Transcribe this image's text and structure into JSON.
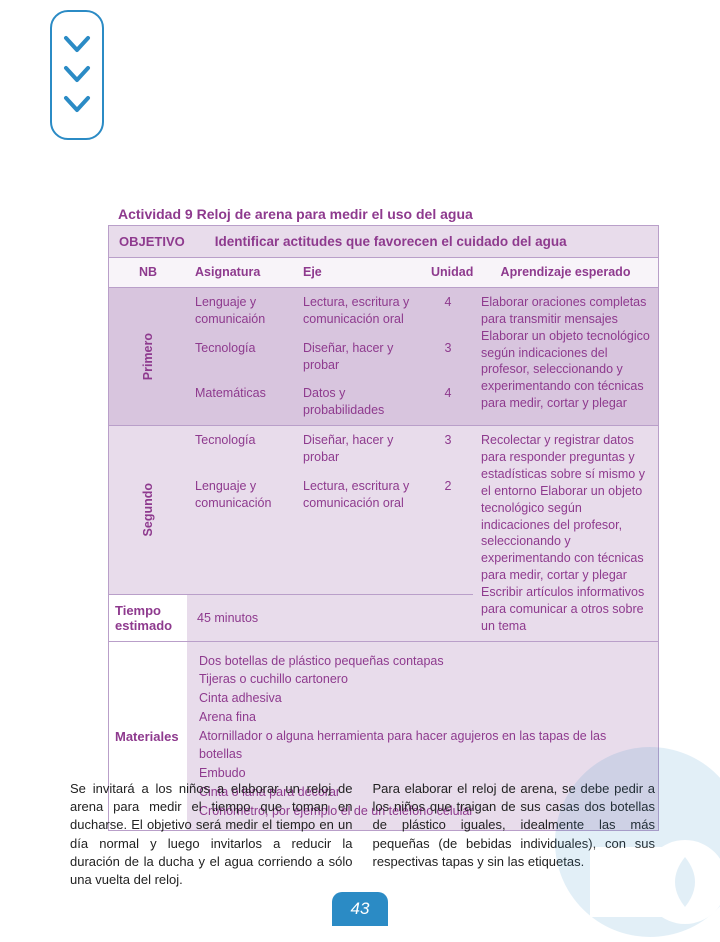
{
  "colors": {
    "purple_text": "#8e3a8e",
    "purple_light": "#e8dceb",
    "purple_mid": "#d8c5de",
    "purple_border": "#b99fc9",
    "blue": "#2b8bc5"
  },
  "activity_title": "Actividad 9 Reloj de arena para medir el uso del agua",
  "objetivo_label": "OBJETIVO",
  "objetivo_value": "Identificar actitudes que favorecen el cuidado del agua",
  "headers": {
    "nb": "NB",
    "asignatura": "Asignatura",
    "eje": "Eje",
    "unidad": "Unidad",
    "aprendizaje": "Aprendizaje esperado"
  },
  "primero": {
    "label": "Primero",
    "rows": [
      {
        "asig": "Lenguaje y comunicaión",
        "eje": "Lectura, escritura y comunicación oral",
        "unidad": "4"
      },
      {
        "asig": "Tecnología",
        "eje": "Diseñar, hacer y probar",
        "unidad": "3"
      },
      {
        "asig": "Matemáticas",
        "eje": "Datos y probabilidades",
        "unidad": "4"
      }
    ],
    "aprendizaje": "Elaborar oraciones completas para transmitir mensajes Elaborar un objeto tecnológico según indicaciones del profesor, seleccionando y experimentando con técnicas para medir, cortar y plegar"
  },
  "segundo": {
    "label": "Segundo",
    "rows": [
      {
        "asig": "Tecnología",
        "eje": "Diseñar, hacer y probar",
        "unidad": "3"
      },
      {
        "asig": "Lenguaje y comunicación",
        "eje": "Lectura, escritura y comunicación oral",
        "unidad": "2"
      }
    ],
    "aprendizaje": "Recolectar y registrar datos para responder preguntas y estadísticas sobre sí mismo y el entorno Elaborar un objeto tecnológico según indicaciones del profesor, seleccionando y experimentando con técnicas para medir, cortar y plegar Escribir artículos informativos para comunicar a otros sobre un tema"
  },
  "tiempo_label": "Tiempo estimado",
  "tiempo_value": "45 minutos",
  "materiales_label": "Materiales",
  "materiales": [
    "Dos botellas de plástico pequeñas contapas",
    "Tijeras o cuchillo cartonero",
    "Cinta adhesiva",
    "Arena fina",
    "Atornillador o alguna herramienta para hacer agujeros en las tapas de las botellas",
    "Embudo",
    "Cinta o lana para decorar",
    "Cronómetro, por ejemplo el de un teléfono celular"
  ],
  "para_left": "Se invitará a los niños a elaborar un reloj de arena para medir el tiempo que toman en ducharse. El objetivo será medir el tiempo en un día normal y luego invitarlos a reducir la duración de la ducha y el agua corriendo a sólo una vuelta del reloj.",
  "para_right": "Para elaborar el reloj de arena, se debe pedir a los niños que traigan de sus casas dos botellas de plástico iguales, idealmente las más pequeñas (de bebidas individuales), con sus respectivas tapas y sin las etiquetas.",
  "page_number": "43"
}
